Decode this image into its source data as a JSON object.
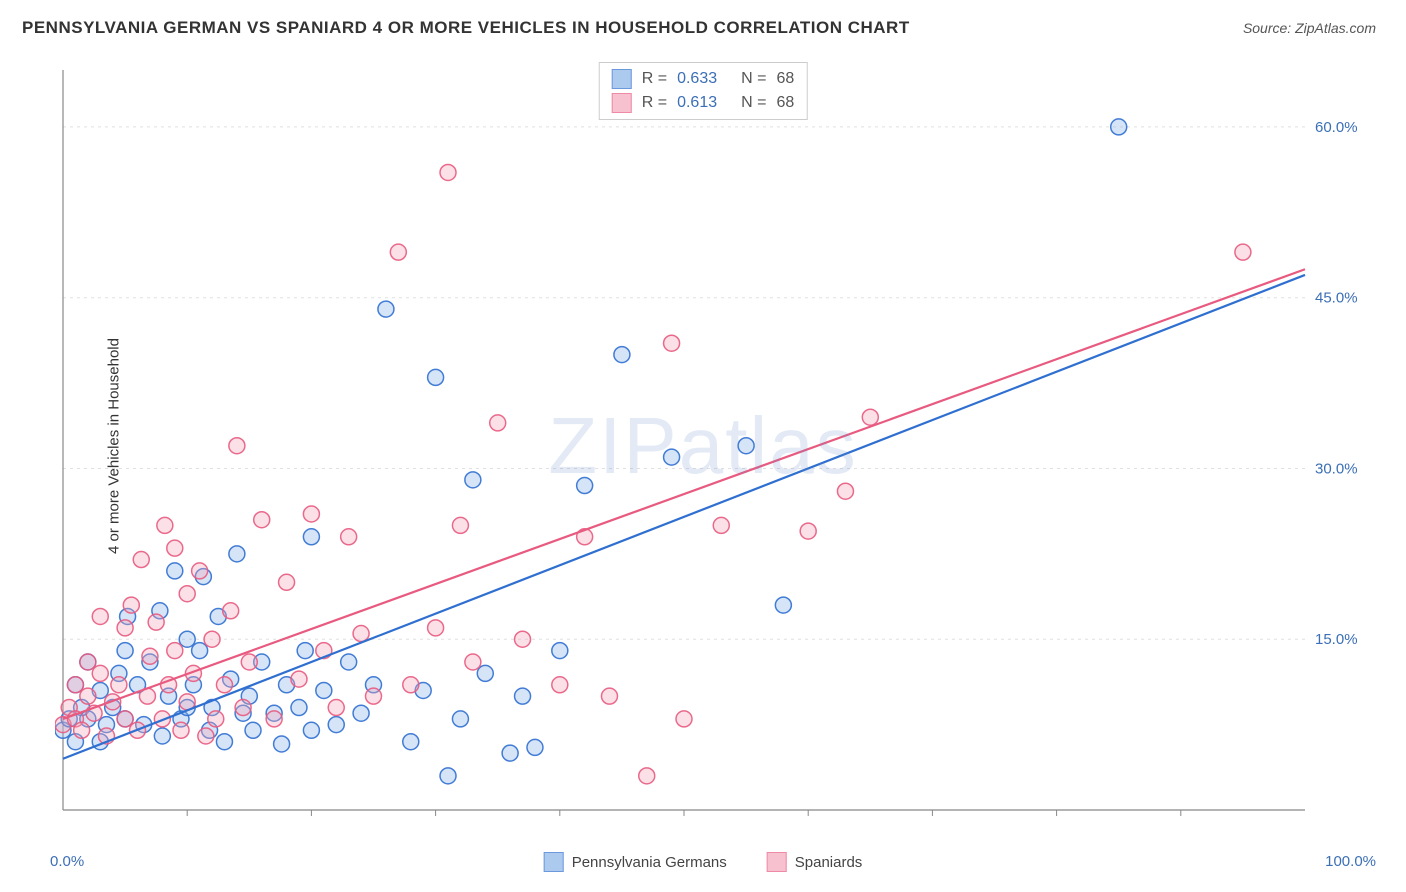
{
  "title": "PENNSYLVANIA GERMAN VS SPANIARD 4 OR MORE VEHICLES IN HOUSEHOLD CORRELATION CHART",
  "source": "Source: ZipAtlas.com",
  "watermark": "ZIPatlas",
  "y_axis_label": "4 or more Vehicles in Household",
  "chart": {
    "type": "scatter-with-regression",
    "background_color": "#ffffff",
    "grid_color": "#e0e0e0",
    "axis_color": "#888888",
    "xlim": [
      0,
      100
    ],
    "ylim": [
      0,
      65
    ],
    "x_ticks_labels": {
      "0": "0.0%",
      "100": "100.0%"
    },
    "x_minor_ticks": [
      10,
      20,
      30,
      40,
      50,
      60,
      70,
      80,
      90
    ],
    "y_ticks": [
      15,
      30,
      45,
      60
    ],
    "y_tick_labels": [
      "15.0%",
      "30.0%",
      "45.0%",
      "60.0%"
    ],
    "y_tick_color": "#3b6fb6",
    "point_radius": 8,
    "point_fill_opacity": 0.35,
    "point_stroke_width": 1.5,
    "line_width": 2.2
  },
  "series": [
    {
      "name": "Pennsylvania Germans",
      "color_stroke": "#2f6fd0",
      "color_fill": "#8ab3e8",
      "R": "0.633",
      "N": "68",
      "regression": {
        "x1": 0,
        "y1": 4.5,
        "x2": 100,
        "y2": 47
      },
      "points": [
        [
          0,
          7
        ],
        [
          0.5,
          8
        ],
        [
          1,
          11
        ],
        [
          1,
          6
        ],
        [
          1.5,
          9
        ],
        [
          2,
          8
        ],
        [
          2,
          13
        ],
        [
          3,
          6
        ],
        [
          3,
          10.5
        ],
        [
          3.5,
          7.5
        ],
        [
          4,
          9
        ],
        [
          4.5,
          12
        ],
        [
          5,
          14
        ],
        [
          5,
          8
        ],
        [
          5.2,
          17
        ],
        [
          6,
          11
        ],
        [
          6.5,
          7.5
        ],
        [
          7,
          13
        ],
        [
          7.8,
          17.5
        ],
        [
          8,
          6.5
        ],
        [
          8.5,
          10
        ],
        [
          9,
          21
        ],
        [
          9.5,
          8
        ],
        [
          10,
          15
        ],
        [
          10,
          9
        ],
        [
          10.5,
          11
        ],
        [
          11,
          14
        ],
        [
          11.3,
          20.5
        ],
        [
          11.8,
          7
        ],
        [
          12,
          9
        ],
        [
          12.5,
          17
        ],
        [
          13,
          6
        ],
        [
          13.5,
          11.5
        ],
        [
          14,
          22.5
        ],
        [
          14.5,
          8.5
        ],
        [
          15,
          10
        ],
        [
          15.3,
          7
        ],
        [
          16,
          13
        ],
        [
          17,
          8.5
        ],
        [
          17.6,
          5.8
        ],
        [
          18,
          11
        ],
        [
          19,
          9
        ],
        [
          19.5,
          14
        ],
        [
          20,
          7
        ],
        [
          20,
          24
        ],
        [
          21,
          10.5
        ],
        [
          22,
          7.5
        ],
        [
          23,
          13
        ],
        [
          24,
          8.5
        ],
        [
          25,
          11
        ],
        [
          26,
          44
        ],
        [
          28,
          6
        ],
        [
          29,
          10.5
        ],
        [
          30,
          38
        ],
        [
          31,
          3
        ],
        [
          32,
          8
        ],
        [
          33,
          29
        ],
        [
          34,
          12
        ],
        [
          36,
          5
        ],
        [
          37,
          10
        ],
        [
          38,
          5.5
        ],
        [
          40,
          14
        ],
        [
          42,
          28.5
        ],
        [
          45,
          40
        ],
        [
          49,
          31
        ],
        [
          55,
          32
        ],
        [
          58,
          18
        ],
        [
          85,
          60
        ]
      ]
    },
    {
      "name": "Spaniards",
      "color_stroke": "#e85a7f",
      "color_fill": "#f4a8bb",
      "R": "0.613",
      "N": "68",
      "regression": {
        "x1": 0,
        "y1": 8,
        "x2": 100,
        "y2": 47.5
      },
      "points": [
        [
          0,
          7.5
        ],
        [
          0.5,
          9
        ],
        [
          1,
          8
        ],
        [
          1,
          11
        ],
        [
          1.5,
          7
        ],
        [
          2,
          10
        ],
        [
          2,
          13
        ],
        [
          2.5,
          8.5
        ],
        [
          3,
          12
        ],
        [
          3,
          17
        ],
        [
          3.5,
          6.5
        ],
        [
          4,
          9.5
        ],
        [
          4.5,
          11
        ],
        [
          5,
          8
        ],
        [
          5,
          16
        ],
        [
          5.5,
          18
        ],
        [
          6,
          7
        ],
        [
          6.3,
          22
        ],
        [
          6.8,
          10
        ],
        [
          7,
          13.5
        ],
        [
          7.5,
          16.5
        ],
        [
          8,
          8
        ],
        [
          8.2,
          25
        ],
        [
          8.5,
          11
        ],
        [
          9,
          14
        ],
        [
          9,
          23
        ],
        [
          9.5,
          7
        ],
        [
          10,
          19
        ],
        [
          10,
          9.5
        ],
        [
          10.5,
          12
        ],
        [
          11,
          21
        ],
        [
          11.5,
          6.5
        ],
        [
          12,
          15
        ],
        [
          12.3,
          8
        ],
        [
          13,
          11
        ],
        [
          13.5,
          17.5
        ],
        [
          14,
          32
        ],
        [
          14.5,
          9
        ],
        [
          15,
          13
        ],
        [
          16,
          25.5
        ],
        [
          17,
          8
        ],
        [
          18,
          20
        ],
        [
          19,
          11.5
        ],
        [
          20,
          26
        ],
        [
          21,
          14
        ],
        [
          22,
          9
        ],
        [
          23,
          24
        ],
        [
          24,
          15.5
        ],
        [
          25,
          10
        ],
        [
          27,
          49
        ],
        [
          28,
          11
        ],
        [
          30,
          16
        ],
        [
          31,
          56
        ],
        [
          32,
          25
        ],
        [
          33,
          13
        ],
        [
          35,
          34
        ],
        [
          37,
          15
        ],
        [
          40,
          11
        ],
        [
          42,
          24
        ],
        [
          44,
          10
        ],
        [
          47,
          3
        ],
        [
          49,
          41
        ],
        [
          50,
          8
        ],
        [
          53,
          25
        ],
        [
          60,
          24.5
        ],
        [
          63,
          28
        ],
        [
          65,
          34.5
        ],
        [
          95,
          49
        ]
      ]
    }
  ],
  "legend_bottom": [
    {
      "label": "Pennsylvania Germans",
      "swatch_fill": "#8ab3e8",
      "swatch_stroke": "#2f6fd0"
    },
    {
      "label": "Spaniards",
      "swatch_fill": "#f4a8bb",
      "swatch_stroke": "#e85a7f"
    }
  ]
}
